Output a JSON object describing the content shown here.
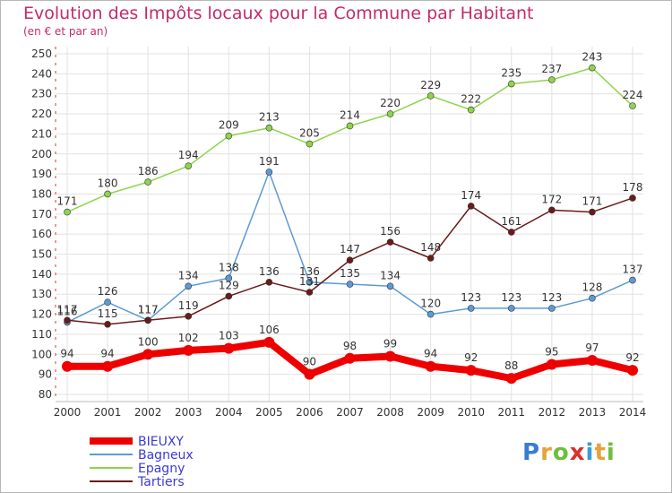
{
  "header": {
    "title": "Evolution des Impôts locaux pour la Commune par Habitant",
    "subtitle": "(en € et par an)"
  },
  "logo": {
    "letters": [
      "P",
      "r",
      "o",
      "x",
      "i",
      "t",
      "i"
    ],
    "colors": [
      "#3a7bd5",
      "#e8a13a",
      "#6cbf3a",
      "#d8312e",
      "#3a9dd5",
      "#e8a13a",
      "#6cbf3a"
    ]
  },
  "chart_data": {
    "type": "line",
    "x": [
      "2000",
      "2001",
      "2002",
      "2003",
      "2004",
      "2005",
      "2006",
      "2007",
      "2008",
      "2009",
      "2010",
      "2011",
      "2012",
      "2013",
      "2014"
    ],
    "ylim": [
      80,
      250
    ],
    "yticks": [
      80,
      90,
      100,
      110,
      120,
      130,
      140,
      150,
      160,
      170,
      180,
      190,
      200,
      210,
      220,
      230,
      240,
      250
    ],
    "grid": true,
    "legend_position": "bottom-left",
    "series": [
      {
        "name": "BIEUXY",
        "color": "#ee0000",
        "emphasis": true,
        "values": [
          94,
          94,
          100,
          102,
          103,
          106,
          90,
          98,
          99,
          94,
          92,
          88,
          95,
          97,
          92
        ]
      },
      {
        "name": "Bagneux",
        "color": "#5b9bd5",
        "values": [
          116,
          126,
          117,
          134,
          138,
          191,
          136,
          135,
          134,
          120,
          123,
          123,
          123,
          128,
          137
        ]
      },
      {
        "name": "Epagny",
        "color": "#8ed44a",
        "values": [
          171,
          180,
          186,
          194,
          209,
          213,
          205,
          214,
          220,
          229,
          222,
          235,
          237,
          243,
          224
        ]
      },
      {
        "name": "Tartiers",
        "color": "#6b1a1a",
        "values": [
          117,
          115,
          117,
          119,
          129,
          136,
          131,
          147,
          156,
          148,
          174,
          161,
          172,
          171,
          178
        ]
      }
    ]
  }
}
